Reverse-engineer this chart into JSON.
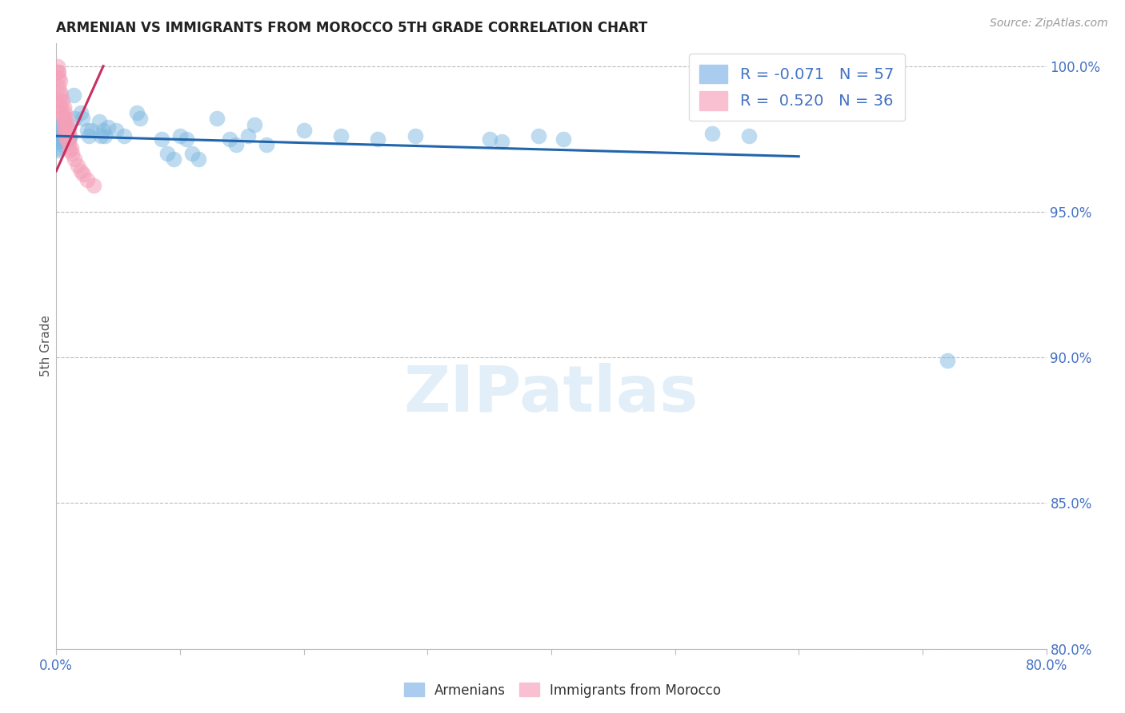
{
  "title": "ARMENIAN VS IMMIGRANTS FROM MOROCCO 5TH GRADE CORRELATION CHART",
  "source": "Source: ZipAtlas.com",
  "ylabel": "5th Grade",
  "xlim": [
    0.0,
    0.8
  ],
  "ylim": [
    0.8,
    1.008
  ],
  "xticks": [
    0.0,
    0.1,
    0.2,
    0.3,
    0.4,
    0.5,
    0.6,
    0.7,
    0.8
  ],
  "xticklabels": [
    "0.0%",
    "",
    "",
    "",
    "",
    "",
    "",
    "",
    "80.0%"
  ],
  "yticks": [
    0.8,
    0.85,
    0.9,
    0.95,
    1.0
  ],
  "yticklabels": [
    "80.0%",
    "85.0%",
    "90.0%",
    "95.0%",
    "100.0%"
  ],
  "blue_color": "#7fb8e0",
  "pink_color": "#f4a0b8",
  "trend_blue": "#2166ac",
  "trend_pink": "#c83060",
  "blue_scatter": [
    [
      0.001,
      0.9755
    ],
    [
      0.001,
      0.972
    ],
    [
      0.002,
      0.979
    ],
    [
      0.002,
      0.974
    ],
    [
      0.002,
      0.971
    ],
    [
      0.003,
      0.978
    ],
    [
      0.003,
      0.975
    ],
    [
      0.004,
      0.98
    ],
    [
      0.004,
      0.976
    ],
    [
      0.005,
      0.976
    ],
    [
      0.005,
      0.973
    ],
    [
      0.006,
      0.975
    ],
    [
      0.007,
      0.977
    ],
    [
      0.007,
      0.974
    ],
    [
      0.008,
      0.976
    ],
    [
      0.009,
      0.975
    ],
    [
      0.01,
      0.975
    ],
    [
      0.011,
      0.9755
    ],
    [
      0.014,
      0.99
    ],
    [
      0.015,
      0.982
    ],
    [
      0.02,
      0.984
    ],
    [
      0.021,
      0.982
    ],
    [
      0.025,
      0.978
    ],
    [
      0.026,
      0.976
    ],
    [
      0.028,
      0.978
    ],
    [
      0.035,
      0.981
    ],
    [
      0.036,
      0.976
    ],
    [
      0.038,
      0.978
    ],
    [
      0.039,
      0.976
    ],
    [
      0.042,
      0.979
    ],
    [
      0.048,
      0.978
    ],
    [
      0.055,
      0.976
    ],
    [
      0.065,
      0.984
    ],
    [
      0.068,
      0.982
    ],
    [
      0.085,
      0.975
    ],
    [
      0.09,
      0.97
    ],
    [
      0.095,
      0.968
    ],
    [
      0.1,
      0.976
    ],
    [
      0.105,
      0.975
    ],
    [
      0.11,
      0.97
    ],
    [
      0.115,
      0.968
    ],
    [
      0.13,
      0.982
    ],
    [
      0.14,
      0.975
    ],
    [
      0.145,
      0.973
    ],
    [
      0.155,
      0.976
    ],
    [
      0.16,
      0.98
    ],
    [
      0.17,
      0.973
    ],
    [
      0.2,
      0.978
    ],
    [
      0.23,
      0.976
    ],
    [
      0.26,
      0.975
    ],
    [
      0.29,
      0.976
    ],
    [
      0.35,
      0.975
    ],
    [
      0.36,
      0.974
    ],
    [
      0.39,
      0.976
    ],
    [
      0.41,
      0.975
    ],
    [
      0.53,
      0.977
    ],
    [
      0.56,
      0.976
    ],
    [
      0.72,
      0.899
    ]
  ],
  "pink_scatter": [
    [
      0.001,
      1.0
    ],
    [
      0.001,
      0.998
    ],
    [
      0.002,
      0.998
    ],
    [
      0.002,
      0.996
    ],
    [
      0.002,
      0.993
    ],
    [
      0.003,
      0.995
    ],
    [
      0.003,
      0.991
    ],
    [
      0.003,
      0.988
    ],
    [
      0.004,
      0.99
    ],
    [
      0.004,
      0.986
    ],
    [
      0.004,
      0.984
    ],
    [
      0.005,
      0.988
    ],
    [
      0.005,
      0.983
    ],
    [
      0.006,
      0.986
    ],
    [
      0.006,
      0.982
    ],
    [
      0.006,
      0.979
    ],
    [
      0.007,
      0.984
    ],
    [
      0.007,
      0.98
    ],
    [
      0.007,
      0.977
    ],
    [
      0.008,
      0.982
    ],
    [
      0.008,
      0.978
    ],
    [
      0.008,
      0.975
    ],
    [
      0.009,
      0.98
    ],
    [
      0.009,
      0.975
    ],
    [
      0.01,
      0.978
    ],
    [
      0.01,
      0.973
    ],
    [
      0.011,
      0.976
    ],
    [
      0.011,
      0.971
    ],
    [
      0.012,
      0.972
    ],
    [
      0.013,
      0.97
    ],
    [
      0.015,
      0.968
    ],
    [
      0.017,
      0.966
    ],
    [
      0.02,
      0.964
    ],
    [
      0.022,
      0.963
    ],
    [
      0.025,
      0.961
    ],
    [
      0.03,
      0.959
    ]
  ],
  "blue_trend_x": [
    0.0,
    0.6
  ],
  "blue_trend_y": [
    0.976,
    0.969
  ],
  "pink_trend_x": [
    0.0,
    0.038
  ],
  "pink_trend_y": [
    0.964,
    1.0
  ],
  "watermark": "ZIPatlas",
  "background_color": "#ffffff",
  "grid_color": "#bbbbbb"
}
